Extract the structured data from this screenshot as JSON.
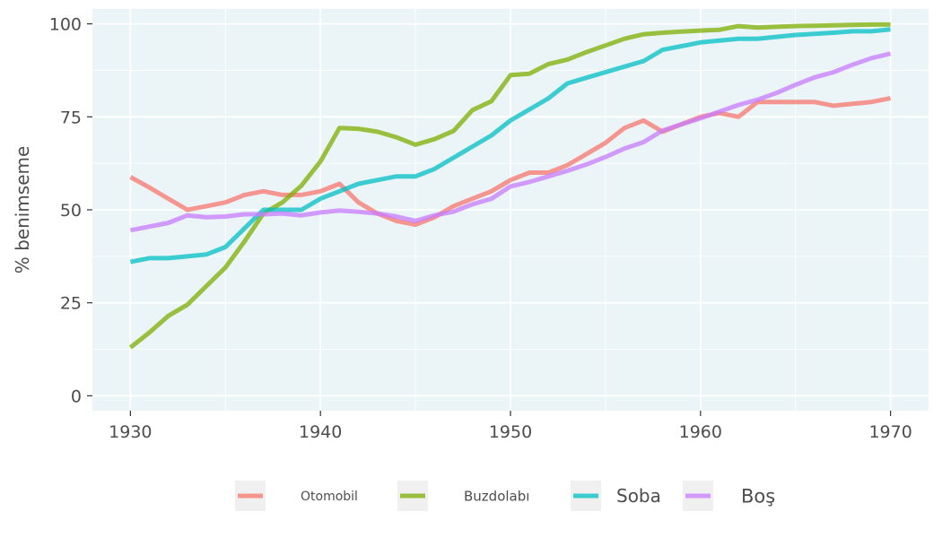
{
  "chart_data": {
    "type": "line",
    "title": "",
    "xlabel": "",
    "ylabel": "% benimseme",
    "xlim": [
      1928,
      1972
    ],
    "ylim": [
      -4,
      104
    ],
    "x_ticks": [
      1930,
      1940,
      1950,
      1960,
      1970
    ],
    "y_ticks": [
      0,
      25,
      50,
      75,
      100
    ],
    "grid": true,
    "legend_position": "bottom",
    "background": "#ebf4f7",
    "x": [
      1930,
      1931,
      1932,
      1933,
      1934,
      1935,
      1936,
      1937,
      1938,
      1939,
      1940,
      1941,
      1942,
      1943,
      1944,
      1945,
      1946,
      1947,
      1948,
      1949,
      1950,
      1951,
      1952,
      1953,
      1954,
      1955,
      1956,
      1957,
      1958,
      1959,
      1960,
      1961,
      1962,
      1963,
      1964,
      1965,
      1966,
      1967,
      1968,
      1969,
      1970
    ],
    "series": [
      {
        "name": "Otomobil",
        "color": "#f8766d",
        "values": [
          58.8,
          56,
          53,
          50,
          51,
          52,
          54,
          55,
          54,
          54,
          55,
          57,
          52,
          49,
          47,
          46,
          48,
          51,
          53,
          55,
          58,
          60,
          60,
          62,
          65,
          68,
          72,
          74,
          71,
          73,
          75,
          76,
          75,
          79,
          79,
          79,
          79,
          78,
          78.5,
          79,
          80
        ]
      },
      {
        "name": "Buzdolabı",
        "color": "#7cae00",
        "values": [
          13,
          17,
          21.5,
          24.5,
          29.5,
          34.5,
          41.5,
          49,
          52,
          56.5,
          63,
          72,
          71.8,
          71,
          69.5,
          67.5,
          69,
          71.2,
          76.8,
          79.2,
          86.2,
          86.6,
          89.2,
          90.4,
          92.4,
          94.2,
          96,
          97.2,
          97.6,
          97.9,
          98.2,
          98.4,
          99.4,
          99,
          99.2,
          99.4,
          99.5,
          99.6,
          99.7,
          99.8,
          99.8
        ]
      },
      {
        "name": "Soba",
        "color": "#00bfc4",
        "values": [
          36,
          37,
          37,
          37.5,
          38,
          40,
          45,
          50,
          50,
          50,
          53,
          55,
          57,
          58,
          59,
          59,
          61,
          64,
          67,
          70,
          74,
          77,
          80,
          84,
          85.5,
          87,
          88.5,
          90,
          93,
          94,
          95,
          95.5,
          96,
          96,
          96.5,
          97,
          97.3,
          97.6,
          98,
          98,
          98.5
        ]
      },
      {
        "name": "Boş",
        "color": "#c77cff",
        "values": [
          44.5,
          45.5,
          46.5,
          48.5,
          48,
          48.2,
          48.8,
          48.8,
          49,
          48.5,
          49.3,
          49.8,
          49.5,
          49,
          48.2,
          47,
          48.5,
          49.5,
          51.5,
          53,
          56.3,
          57.5,
          59,
          60.5,
          62.2,
          64.2,
          66.5,
          68.2,
          71.3,
          73,
          74.6,
          76.4,
          78.2,
          79.6,
          81.4,
          83.6,
          85.6,
          87,
          89,
          90.8,
          92
        ]
      }
    ]
  }
}
